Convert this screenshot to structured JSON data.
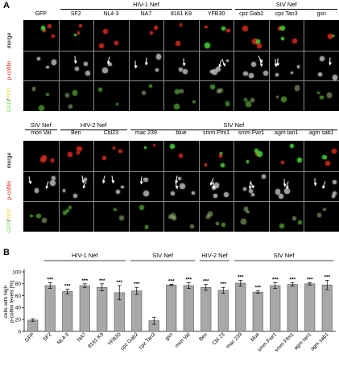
{
  "panel_a": {
    "letter": "A",
    "row_labels": {
      "merge": "merge",
      "p_cofilin": "p-cofilin",
      "gfp_yfp_green": "GFP",
      "gfp_yfp_slash": "/",
      "gfp_yfp_yellow": "YFP"
    },
    "top": {
      "groups": [
        {
          "label": "HIV-1 Nef",
          "start": 1,
          "end": 5
        },
        {
          "label": "SIV Nef",
          "start": 6,
          "end": 8
        }
      ],
      "columns": [
        "GFP",
        "SF2",
        "NL4-3",
        "NA7",
        "8161 K9",
        "YFB30",
        "cpz Gab2",
        "cpz Tan3",
        "gsn"
      ]
    },
    "bottom": {
      "groups": [
        {
          "label": "SIV Nef",
          "start": 0,
          "end": 0
        },
        {
          "label": "HIV-2 Nef",
          "start": 1,
          "end": 2
        },
        {
          "label": "SIV Nef",
          "start": 3,
          "end": 8
        }
      ],
      "columns": [
        "mon Val",
        "Ben",
        "Cbl23",
        "mac 239",
        "blue",
        "smm Ffm1",
        "smm Fwr1",
        "agm tan1",
        "agm sab1"
      ]
    }
  },
  "colors": {
    "merge_red": "#d42b1e",
    "merge_green": "#45d43a",
    "cell_gray": "#b9b9b9",
    "gfp_green": "#6fdc45",
    "yfp_yellow": "#e0d820",
    "pcofilin_red": "#e02020"
  },
  "chart_data": {
    "type": "bar",
    "panel_letter": "B",
    "ylabel": "cells with high p-cofilin levels [%]",
    "ylim": [
      0,
      100
    ],
    "yticks": [
      0,
      20,
      40,
      60,
      80,
      100
    ],
    "group_labels": [
      {
        "label": "HIV-1 Nef",
        "start": 1,
        "end": 5
      },
      {
        "label": "SIV Nef",
        "start": 6,
        "end": 9
      },
      {
        "label": "HIV-2 Nef",
        "start": 10,
        "end": 11
      },
      {
        "label": "SIV Nef",
        "start": 12,
        "end": 17
      }
    ],
    "categories": [
      "GFP",
      "SF2",
      "NL4-3",
      "NA7",
      "8161 K9",
      "YFB30",
      "cpz Gab2",
      "cpz Tan3",
      "gsn",
      "mon Val",
      "Ben",
      "Cbl 23",
      "mac 239",
      "blue",
      "smm Fwr1",
      "smm Ffm1",
      "agm tan1",
      "agm sab1"
    ],
    "values": [
      19,
      77,
      67,
      77,
      74,
      65,
      68,
      18,
      78,
      77,
      74,
      69,
      81,
      66,
      77,
      79,
      80,
      78
    ],
    "errors": [
      2,
      5,
      4,
      3,
      6,
      12,
      6,
      6,
      1,
      5,
      5,
      5,
      5,
      2,
      5,
      3,
      2,
      8
    ],
    "significance": [
      "",
      "***",
      "***",
      "***",
      "***",
      "***",
      "***",
      "",
      "***",
      "***",
      "***",
      "***",
      "***",
      "***",
      "***",
      "***",
      "***",
      "***"
    ]
  }
}
